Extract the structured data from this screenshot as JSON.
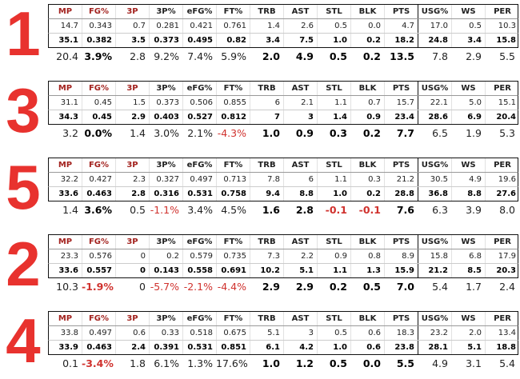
{
  "columns": [
    "MP",
    "FG%",
    "3P",
    "3P%",
    "eFG%",
    "FT%",
    "TRB",
    "AST",
    "STL",
    "BLK",
    "PTS",
    "USG%",
    "WS",
    "PER"
  ],
  "blocks": [
    {
      "rank": "1",
      "row1": [
        "14.7",
        "0.343",
        "0.7",
        "0.281",
        "0.421",
        "0.761",
        "1.4",
        "2.6",
        "0.5",
        "0.0",
        "4.7",
        "17.0",
        "0.5",
        "10.3"
      ],
      "row2": [
        "35.1",
        "0.382",
        "3.5",
        "0.373",
        "0.495",
        "0.82",
        "3.4",
        "7.5",
        "1.0",
        "0.2",
        "18.2",
        "24.8",
        "3.4",
        "15.8"
      ],
      "diff": [
        "20.4",
        "3.9%",
        "2.8",
        "9.2%",
        "7.4%",
        "5.9%",
        "2.0",
        "4.9",
        "0.5",
        "0.2",
        "13.5",
        "7.8",
        "2.9",
        "5.5"
      ]
    },
    {
      "rank": "3",
      "row1": [
        "31.1",
        "0.45",
        "1.5",
        "0.373",
        "0.506",
        "0.855",
        "6",
        "2.1",
        "1.1",
        "0.7",
        "15.7",
        "22.1",
        "5.0",
        "15.1"
      ],
      "row2": [
        "34.3",
        "0.45",
        "2.9",
        "0.403",
        "0.527",
        "0.812",
        "7",
        "3",
        "1.4",
        "0.9",
        "23.4",
        "28.6",
        "6.9",
        "20.4"
      ],
      "diff": [
        "3.2",
        "0.0%",
        "1.4",
        "3.0%",
        "2.1%",
        "-4.3%",
        "1.0",
        "0.9",
        "0.3",
        "0.2",
        "7.7",
        "6.5",
        "1.9",
        "5.3"
      ]
    },
    {
      "rank": "5",
      "row1": [
        "32.2",
        "0.427",
        "2.3",
        "0.327",
        "0.497",
        "0.713",
        "7.8",
        "6",
        "1.1",
        "0.3",
        "21.2",
        "30.5",
        "4.9",
        "19.6"
      ],
      "row2": [
        "33.6",
        "0.463",
        "2.8",
        "0.316",
        "0.531",
        "0.758",
        "9.4",
        "8.8",
        "1.0",
        "0.2",
        "28.8",
        "36.8",
        "8.8",
        "27.6"
      ],
      "diff": [
        "1.4",
        "3.6%",
        "0.5",
        "-1.1%",
        "3.4%",
        "4.5%",
        "1.6",
        "2.8",
        "-0.1",
        "-0.1",
        "7.6",
        "6.3",
        "3.9",
        "8.0"
      ]
    },
    {
      "rank": "2",
      "row1": [
        "23.3",
        "0.576",
        "0",
        "0.2",
        "0.579",
        "0.735",
        "7.3",
        "2.2",
        "0.9",
        "0.8",
        "8.9",
        "15.8",
        "6.8",
        "17.9"
      ],
      "row2": [
        "33.6",
        "0.557",
        "0",
        "0.143",
        "0.558",
        "0.691",
        "10.2",
        "5.1",
        "1.1",
        "1.3",
        "15.9",
        "21.2",
        "8.5",
        "20.3"
      ],
      "diff": [
        "10.3",
        "-1.9%",
        "0",
        "-5.7%",
        "-2.1%",
        "-4.4%",
        "2.9",
        "2.9",
        "0.2",
        "0.5",
        "7.0",
        "5.4",
        "1.7",
        "2.4"
      ]
    },
    {
      "rank": "4",
      "row1": [
        "33.8",
        "0.497",
        "0.6",
        "0.33",
        "0.518",
        "0.675",
        "5.1",
        "3",
        "0.5",
        "0.6",
        "18.3",
        "23.2",
        "2.0",
        "13.4"
      ],
      "row2": [
        "33.9",
        "0.463",
        "2.4",
        "0.391",
        "0.531",
        "0.851",
        "6.1",
        "4.2",
        "1.0",
        "0.6",
        "23.8",
        "28.1",
        "5.1",
        "18.8"
      ],
      "diff": [
        "0.1",
        "-3.4%",
        "1.8",
        "6.1%",
        "1.3%",
        "17.6%",
        "1.0",
        "1.2",
        "0.5",
        "0.0",
        "5.5",
        "4.9",
        "3.1",
        "5.4"
      ]
    }
  ]
}
